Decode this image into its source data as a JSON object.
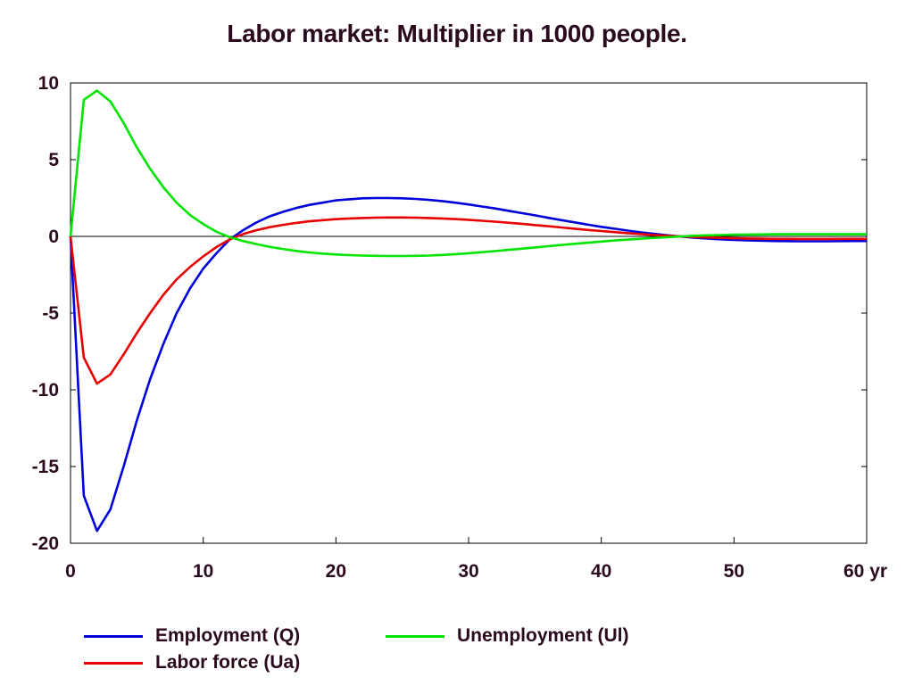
{
  "chart_data": {
    "type": "line",
    "title": "Labor market: Multiplier in 1000 people.",
    "xlabel": "",
    "ylabel": "",
    "xlim": [
      0,
      60
    ],
    "ylim": [
      -20,
      10
    ],
    "x_ticks": [
      0,
      10,
      20,
      30,
      40,
      50,
      60
    ],
    "x_tick_labels": [
      "0",
      "10",
      "20",
      "30",
      "40",
      "50",
      "60 yr"
    ],
    "y_ticks": [
      10,
      5,
      0,
      -5,
      -10,
      -15,
      -20
    ],
    "y_tick_labels": [
      "10",
      "5",
      "0",
      "-5",
      "-10",
      "-15",
      "-20"
    ],
    "grid": false,
    "zero_line": true,
    "legend_placement": "bottom",
    "x": [
      0,
      1,
      2,
      3,
      4,
      5,
      6,
      7,
      8,
      9,
      10,
      11,
      12,
      13,
      14,
      15,
      16,
      17,
      18,
      19,
      20,
      21,
      22,
      23,
      24,
      25,
      26,
      27,
      28,
      29,
      30,
      31,
      32,
      33,
      34,
      35,
      36,
      37,
      38,
      39,
      40,
      41,
      42,
      43,
      44,
      45,
      46,
      47,
      48,
      49,
      50,
      51,
      52,
      53,
      54,
      55,
      56,
      57,
      58,
      59,
      60
    ],
    "series": [
      {
        "name": "Employment (Q)",
        "color": "#0000dd",
        "values": [
          0,
          -16.9,
          -19.2,
          -17.8,
          -15.0,
          -12.0,
          -9.3,
          -7.0,
          -5.0,
          -3.4,
          -2.1,
          -1.1,
          -0.2,
          0.4,
          0.9,
          1.3,
          1.6,
          1.85,
          2.05,
          2.2,
          2.35,
          2.42,
          2.48,
          2.5,
          2.5,
          2.48,
          2.44,
          2.38,
          2.3,
          2.2,
          2.08,
          1.95,
          1.82,
          1.67,
          1.52,
          1.37,
          1.21,
          1.06,
          0.91,
          0.76,
          0.62,
          0.5,
          0.38,
          0.26,
          0.16,
          0.07,
          -0.01,
          -0.08,
          -0.14,
          -0.19,
          -0.23,
          -0.26,
          -0.28,
          -0.3,
          -0.31,
          -0.32,
          -0.32,
          -0.32,
          -0.31,
          -0.3,
          -0.3
        ]
      },
      {
        "name": "Labor force (Ua)",
        "color": "#e80000",
        "values": [
          0,
          -7.9,
          -9.6,
          -9.0,
          -7.7,
          -6.3,
          -5.0,
          -3.8,
          -2.8,
          -2.0,
          -1.3,
          -0.7,
          -0.2,
          0.15,
          0.4,
          0.6,
          0.75,
          0.88,
          0.98,
          1.06,
          1.12,
          1.17,
          1.2,
          1.22,
          1.23,
          1.23,
          1.22,
          1.2,
          1.17,
          1.13,
          1.08,
          1.02,
          0.96,
          0.89,
          0.82,
          0.74,
          0.66,
          0.58,
          0.5,
          0.42,
          0.35,
          0.28,
          0.21,
          0.15,
          0.09,
          0.04,
          0.0,
          -0.04,
          -0.07,
          -0.1,
          -0.12,
          -0.14,
          -0.15,
          -0.16,
          -0.16,
          -0.17,
          -0.17,
          -0.17,
          -0.16,
          -0.16,
          -0.16
        ]
      },
      {
        "name": "Unemployment (Ul)",
        "color": "#00e400",
        "values": [
          0,
          8.9,
          9.5,
          8.8,
          7.4,
          5.8,
          4.4,
          3.2,
          2.2,
          1.4,
          0.8,
          0.3,
          -0.05,
          -0.3,
          -0.5,
          -0.68,
          -0.82,
          -0.95,
          -1.05,
          -1.12,
          -1.18,
          -1.22,
          -1.25,
          -1.27,
          -1.28,
          -1.28,
          -1.27,
          -1.25,
          -1.21,
          -1.16,
          -1.1,
          -1.03,
          -0.96,
          -0.88,
          -0.8,
          -0.72,
          -0.64,
          -0.56,
          -0.48,
          -0.41,
          -0.34,
          -0.27,
          -0.21,
          -0.15,
          -0.1,
          -0.05,
          0.0,
          0.04,
          0.07,
          0.09,
          0.11,
          0.12,
          0.13,
          0.14,
          0.14,
          0.14,
          0.14,
          0.14,
          0.14,
          0.14,
          0.14
        ]
      }
    ]
  }
}
